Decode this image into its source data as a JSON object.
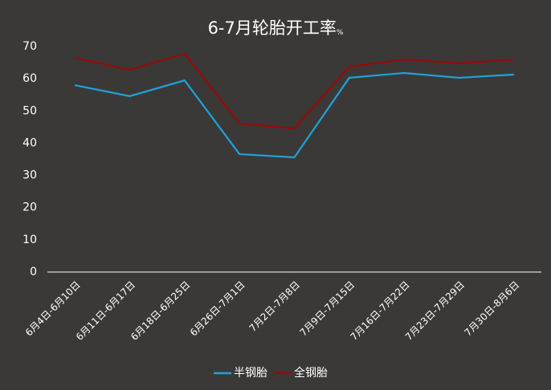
{
  "chart_data": {
    "type": "line",
    "title": "6-7月轮胎开工率",
    "unit": "%",
    "categories": [
      "6月4日-6月10日",
      "6月11日-6月17日",
      "6月18日-6月25日",
      "6月26日-7月1日",
      "7月2日-7月8日",
      "7月9日-7月15日",
      "7月16日-7月22日",
      "7月23日-7月29日",
      "7月30日-8月6日"
    ],
    "series": [
      {
        "name": "半钢胎",
        "color": "#1ba3dc",
        "values": [
          58.0,
          54.6,
          59.5,
          36.6,
          35.6,
          60.3,
          61.8,
          60.3,
          61.3
        ]
      },
      {
        "name": "全钢胎",
        "color": "#9b0a0a",
        "values": [
          66.5,
          62.8,
          67.8,
          46.1,
          44.6,
          63.8,
          66.0,
          64.8,
          66.0
        ]
      }
    ],
    "ylim": [
      0,
      70
    ],
    "yticks": [
      0,
      10,
      20,
      30,
      40,
      50,
      60,
      70
    ],
    "grid": false,
    "legend": "bottom"
  }
}
